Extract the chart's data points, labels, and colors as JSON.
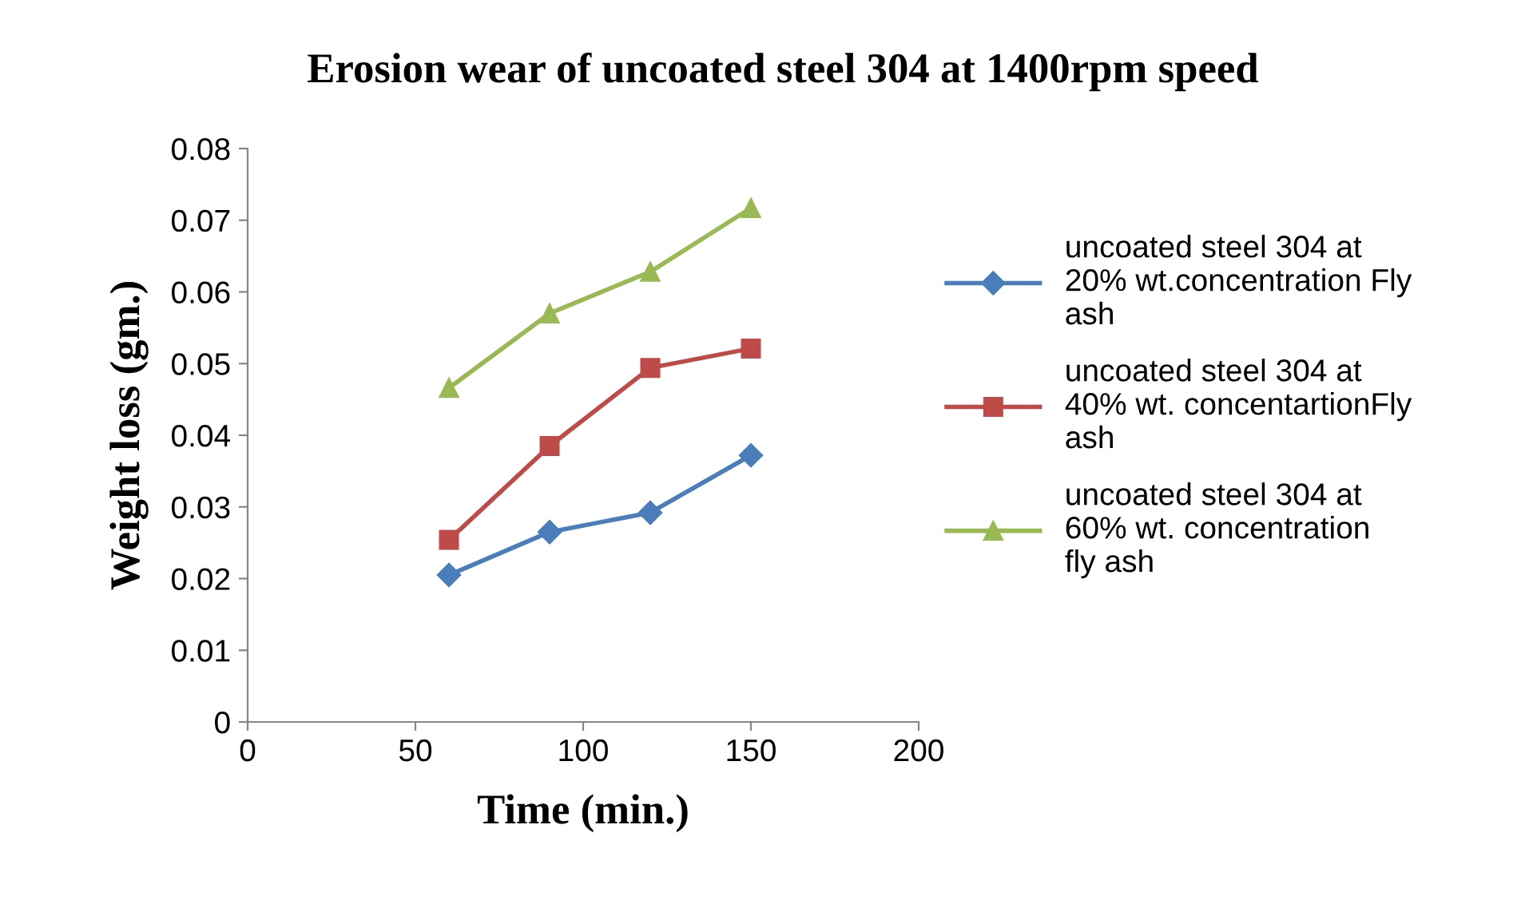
{
  "chart_data": {
    "type": "line",
    "title": "Erosion wear of uncoated steel 304 at 1400rpm speed",
    "xlabel": "Time (min.)",
    "ylabel": "Weight loss (gm.)",
    "x": [
      60,
      90,
      120,
      150
    ],
    "series": [
      {
        "name": "uncoated steel 304 at 20% wt.concentration Fly ash",
        "color": "#4a7ebb",
        "marker": "diamond",
        "values": [
          0.0205,
          0.0265,
          0.0292,
          0.0372
        ]
      },
      {
        "name": "uncoated steel 304 at 40% wt. concentartionFly ash",
        "color": "#be4b48",
        "marker": "square",
        "values": [
          0.0254,
          0.0385,
          0.0494,
          0.0521
        ]
      },
      {
        "name": "uncoated steel 304 at 60% wt. concentration fly ash",
        "color": "#98b954",
        "marker": "triangle",
        "values": [
          0.0466,
          0.057,
          0.0628,
          0.0717
        ]
      }
    ],
    "xlim": [
      0,
      200
    ],
    "xticks": [
      0,
      50,
      100,
      150,
      200
    ],
    "ylim": [
      0,
      0.08
    ],
    "yticks": [
      {
        "value": 0,
        "label": "0"
      },
      {
        "value": 0.01,
        "label": "0.01"
      },
      {
        "value": 0.02,
        "label": "0.02"
      },
      {
        "value": 0.03,
        "label": "0.03"
      },
      {
        "value": 0.04,
        "label": "0.04"
      },
      {
        "value": 0.05,
        "label": "0.05"
      },
      {
        "value": 0.06,
        "label": "0.06"
      },
      {
        "value": 0.07,
        "label": "0.07"
      },
      {
        "value": 0.08,
        "label": "0.08"
      }
    ],
    "grid": false,
    "legend": "right"
  }
}
